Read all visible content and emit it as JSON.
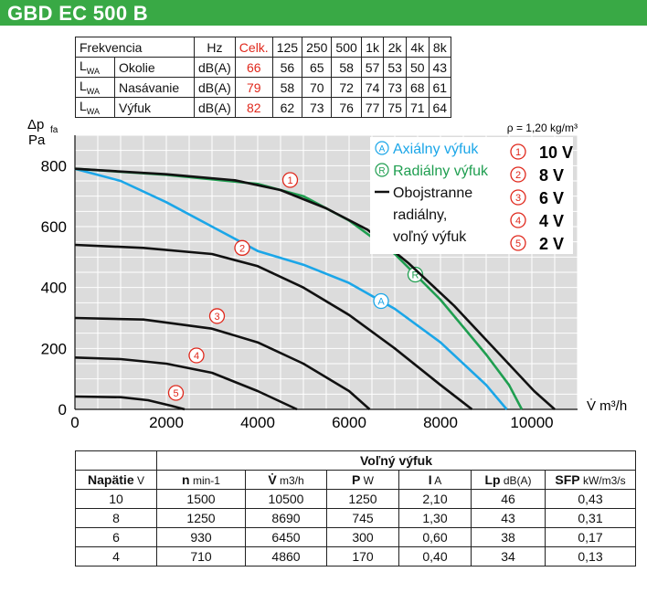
{
  "title": "GBD EC 500 B",
  "top_table": {
    "header": [
      "Frekvencia",
      "Hz",
      "Celk.",
      "125",
      "250",
      "500",
      "1k",
      "2k",
      "4k",
      "8k"
    ],
    "rows": [
      {
        "lwa": "L",
        "lwa_sub": "WA",
        "name": "Okolie",
        "unit": "dB(A)",
        "total": "66",
        "values": [
          "56",
          "65",
          "58",
          "57",
          "53",
          "50",
          "43"
        ]
      },
      {
        "lwa": "L",
        "lwa_sub": "WA",
        "name": "Nasávanie",
        "unit": "dB(A)",
        "total": "79",
        "values": [
          "58",
          "70",
          "72",
          "74",
          "73",
          "68",
          "61"
        ]
      },
      {
        "lwa": "L",
        "lwa_sub": "WA",
        "name": "Výfuk",
        "unit": "dB(A)",
        "total": "82",
        "values": [
          "62",
          "73",
          "76",
          "77",
          "75",
          "71",
          "64"
        ]
      }
    ]
  },
  "bottom_table": {
    "group_header": "Voľný výfuk",
    "headers": [
      {
        "label": "Napätie",
        "unit": "V"
      },
      {
        "label": "n",
        "unit": "min-1"
      },
      {
        "label": "V̇",
        "unit": "m3/h"
      },
      {
        "label": "P",
        "unit": "W"
      },
      {
        "label": "I",
        "unit": "A"
      },
      {
        "label": "Lp",
        "unit": "dB(A)"
      },
      {
        "label": "SFP",
        "unit": "kW/m3/s"
      }
    ],
    "rows": [
      [
        "10",
        "1500",
        "10500",
        "1250",
        "2,10",
        "46",
        "0,43"
      ],
      [
        "8",
        "1250",
        "8690",
        "745",
        "1,30",
        "43",
        "0,31"
      ],
      [
        "6",
        "930",
        "6450",
        "300",
        "0,60",
        "38",
        "0,17"
      ],
      [
        "4",
        "710",
        "4860",
        "170",
        "0,40",
        "34",
        "0,13"
      ]
    ]
  },
  "colors": {
    "brand_green": "#39a945",
    "axial": "#1ba6e8",
    "radial": "#1f9e50",
    "black": "#111111",
    "red": "#e0281c"
  },
  "chart_data": {
    "type": "line",
    "ylabel_main": "Δp",
    "ylabel_sub": "fa",
    "ylabel_unit": "Pa",
    "xlabel": "V̇ m³/h",
    "density_note": "ρ = 1,20 kg/m³",
    "xlim": [
      0,
      11000
    ],
    "ylim": [
      0,
      900
    ],
    "xticks": [
      0,
      2000,
      4000,
      6000,
      8000,
      10000
    ],
    "yticks": [
      0,
      200,
      400,
      600,
      800
    ],
    "grid": true,
    "legend_placement": "top-right",
    "legend": [
      {
        "marker": "A",
        "label": "Axiálny výfuk",
        "color": "#1ba6e8"
      },
      {
        "marker": "R",
        "label": "Radiálny výfuk",
        "color": "#1f9e50"
      },
      {
        "marker": "",
        "label": "Obojstranne",
        "color": "#111111"
      },
      {
        "marker": "",
        "label": "radiálny,",
        "color": "#111111"
      },
      {
        "marker": "",
        "label": "voľný výfuk",
        "color": "#111111"
      }
    ],
    "voltage_legend": [
      {
        "marker": "1",
        "label": "10 V"
      },
      {
        "marker": "2",
        "label": "8 V"
      },
      {
        "marker": "3",
        "label": "6 V"
      },
      {
        "marker": "4",
        "label": "4 V"
      },
      {
        "marker": "5",
        "label": "2 V"
      }
    ],
    "series": [
      {
        "name": "Axiálny výfuk",
        "marker": "A",
        "marker_at": 6700,
        "color": "#1ba6e8",
        "x": [
          0,
          1000,
          2000,
          3000,
          4000,
          5000,
          6000,
          7000,
          8000,
          9000,
          9450
        ],
        "y": [
          790,
          750,
          680,
          600,
          520,
          475,
          415,
          330,
          220,
          80,
          0
        ]
      },
      {
        "name": "Radiálny výfuk",
        "marker": "R",
        "marker_at": 7450,
        "color": "#1f9e50",
        "x": [
          0,
          2000,
          4000,
          5000,
          6000,
          7000,
          8000,
          9000,
          9500,
          9780
        ],
        "y": [
          790,
          770,
          740,
          700,
          620,
          510,
          360,
          180,
          80,
          0
        ]
      },
      {
        "marker": "1",
        "marker_at": 4750,
        "color": "#111111",
        "x": [
          0,
          2000,
          3500,
          4500,
          5500,
          6400,
          7300,
          8300,
          9300,
          10050,
          10500
        ],
        "y": [
          790,
          772,
          752,
          720,
          660,
          590,
          480,
          340,
          180,
          60,
          0
        ]
      },
      {
        "marker": "2",
        "marker_at": 3700,
        "color": "#111111",
        "x": [
          0,
          1500,
          3000,
          4000,
          5000,
          6000,
          7000,
          8000,
          8690
        ],
        "y": [
          540,
          530,
          510,
          470,
          400,
          310,
          200,
          80,
          0
        ]
      },
      {
        "marker": "3",
        "marker_at": 3150,
        "color": "#111111",
        "x": [
          0,
          1500,
          3000,
          4000,
          5000,
          6000,
          6450
        ],
        "y": [
          300,
          295,
          265,
          220,
          150,
          60,
          0
        ]
      },
      {
        "marker": "4",
        "marker_at": 2700,
        "color": "#111111",
        "x": [
          0,
          1000,
          2000,
          3000,
          4000,
          4860
        ],
        "y": [
          170,
          165,
          150,
          120,
          60,
          0
        ]
      },
      {
        "marker": "5",
        "marker_at": 2250,
        "color": "#111111",
        "x": [
          0,
          1000,
          1600,
          2100,
          2400
        ],
        "y": [
          42,
          40,
          30,
          12,
          0
        ]
      }
    ]
  }
}
